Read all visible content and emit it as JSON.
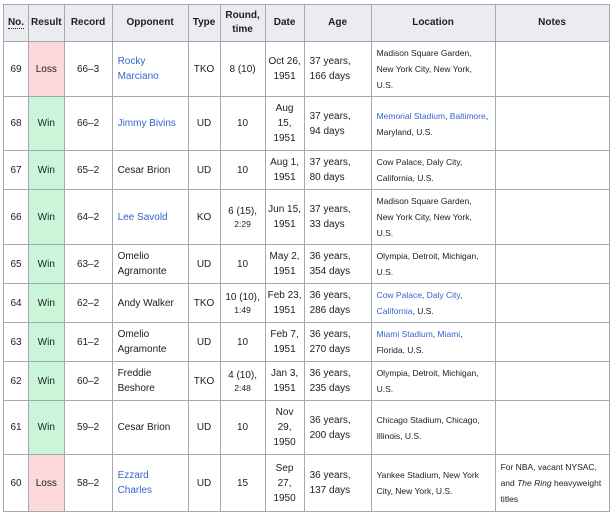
{
  "table": {
    "headers": {
      "no": "No.",
      "result": "Result",
      "record": "Record",
      "opponent": "Opponent",
      "type": "Type",
      "round": "Round,\ntime",
      "date": "Date",
      "age": "Age",
      "location": "Location",
      "notes": "Notes"
    },
    "colors": {
      "win_bg": "#caf5d8",
      "loss_bg": "#fdd8d8",
      "header_bg": "#eaecf0",
      "border": "#a2a9b1",
      "link": "#3366cc",
      "text": "#202122"
    },
    "rows": [
      {
        "no": "69",
        "result": "Loss",
        "result_kind": "loss",
        "record": "66–3",
        "opponent": [
          {
            "t": "Rocky Marciano",
            "link": true
          }
        ],
        "type": "TKO",
        "round": {
          "main": "8 (10)",
          "time": ""
        },
        "date": "Oct 26,\n1951",
        "age": "37 years,\n166 days",
        "location": [
          {
            "t": "Madison Square Garden, New York City, New York, U.S.",
            "link": false
          }
        ],
        "notes": []
      },
      {
        "no": "68",
        "result": "Win",
        "result_kind": "win",
        "record": "66–2",
        "opponent": [
          {
            "t": "Jimmy Bivins",
            "link": true
          }
        ],
        "type": "UD",
        "round": {
          "main": "10",
          "time": ""
        },
        "date": "Aug\n15,\n1951",
        "age": "37 years,\n94 days",
        "location": [
          {
            "t": "Memorial Stadium",
            "link": true
          },
          {
            "t": ", ",
            "link": false
          },
          {
            "t": "Baltimore",
            "link": true
          },
          {
            "t": ", Maryland, U.S.",
            "link": false
          }
        ],
        "notes": []
      },
      {
        "no": "67",
        "result": "Win",
        "result_kind": "win",
        "record": "65–2",
        "opponent": [
          {
            "t": "Cesar Brion",
            "link": false
          }
        ],
        "type": "UD",
        "round": {
          "main": "10",
          "time": ""
        },
        "date": "Aug 1,\n1951",
        "age": "37 years,\n80 days",
        "location": [
          {
            "t": "Cow Palace, Daly City, California, U.S.",
            "link": false
          }
        ],
        "notes": []
      },
      {
        "no": "66",
        "result": "Win",
        "result_kind": "win",
        "record": "64–2",
        "opponent": [
          {
            "t": "Lee Savold",
            "link": true
          }
        ],
        "type": "KO",
        "round": {
          "main": "6 (15),",
          "time": "2:29"
        },
        "date": "Jun 15,\n1951",
        "age": "37 years,\n33 days",
        "location": [
          {
            "t": "Madison Square Garden, New York City, New York, U.S.",
            "link": false
          }
        ],
        "notes": []
      },
      {
        "no": "65",
        "result": "Win",
        "result_kind": "win",
        "record": "63–2",
        "opponent": [
          {
            "t": "Omelio Agramonte",
            "link": false
          }
        ],
        "type": "UD",
        "round": {
          "main": "10",
          "time": ""
        },
        "date": "May 2,\n1951",
        "age": "36 years,\n354 days",
        "location": [
          {
            "t": "Olympia, Detroit, Michigan, U.S.",
            "link": false
          }
        ],
        "notes": []
      },
      {
        "no": "64",
        "result": "Win",
        "result_kind": "win",
        "record": "62–2",
        "opponent": [
          {
            "t": "Andy Walker",
            "link": false
          }
        ],
        "type": "TKO",
        "round": {
          "main": "10 (10),",
          "time": "1:49"
        },
        "date": "Feb 23,\n1951",
        "age": "36 years,\n286 days",
        "location": [
          {
            "t": "Cow Palace",
            "link": true
          },
          {
            "t": ", ",
            "link": false
          },
          {
            "t": "Daly City",
            "link": true
          },
          {
            "t": ", ",
            "link": false
          },
          {
            "t": "California",
            "link": true
          },
          {
            "t": ", U.S.",
            "link": false
          }
        ],
        "notes": []
      },
      {
        "no": "63",
        "result": "Win",
        "result_kind": "win",
        "record": "61–2",
        "opponent": [
          {
            "t": "Omelio Agramonte",
            "link": false
          }
        ],
        "type": "UD",
        "round": {
          "main": "10",
          "time": ""
        },
        "date": "Feb 7,\n1951",
        "age": "36 years,\n270 days",
        "location": [
          {
            "t": "Miami Stadium",
            "link": true
          },
          {
            "t": ", ",
            "link": false
          },
          {
            "t": "Miami",
            "link": true
          },
          {
            "t": ", Florida, U.S.",
            "link": false
          }
        ],
        "notes": []
      },
      {
        "no": "62",
        "result": "Win",
        "result_kind": "win",
        "record": "60–2",
        "opponent": [
          {
            "t": "Freddie Beshore",
            "link": false
          }
        ],
        "type": "TKO",
        "round": {
          "main": "4 (10),",
          "time": "2:48"
        },
        "date": "Jan 3,\n1951",
        "age": "36 years,\n235 days",
        "location": [
          {
            "t": "Olympia, Detroit, Michigan, U.S.",
            "link": false
          }
        ],
        "notes": []
      },
      {
        "no": "61",
        "result": "Win",
        "result_kind": "win",
        "record": "59–2",
        "opponent": [
          {
            "t": "Cesar Brion",
            "link": false
          }
        ],
        "type": "UD",
        "round": {
          "main": "10",
          "time": ""
        },
        "date": "Nov\n29,\n1950",
        "age": "36 years,\n200 days",
        "location": [
          {
            "t": "Chicago Stadium, Chicago, Illinois, U.S.",
            "link": false
          }
        ],
        "notes": []
      },
      {
        "no": "60",
        "result": "Loss",
        "result_kind": "loss",
        "record": "58–2",
        "opponent": [
          {
            "t": "Ezzard Charles",
            "link": true
          }
        ],
        "type": "UD",
        "round": {
          "main": "15",
          "time": ""
        },
        "date": "Sep\n27,\n1950",
        "age": "36 years,\n137 days",
        "location": [
          {
            "t": "Yankee Stadium, New York City, New York, U.S.",
            "link": false
          }
        ],
        "notes": [
          {
            "t": "For NBA, vacant NYSAC, and ",
            "link": false
          },
          {
            "t": "The Ring",
            "link": false,
            "italic": true
          },
          {
            "t": " heavyweight titles",
            "link": false
          }
        ]
      }
    ]
  }
}
